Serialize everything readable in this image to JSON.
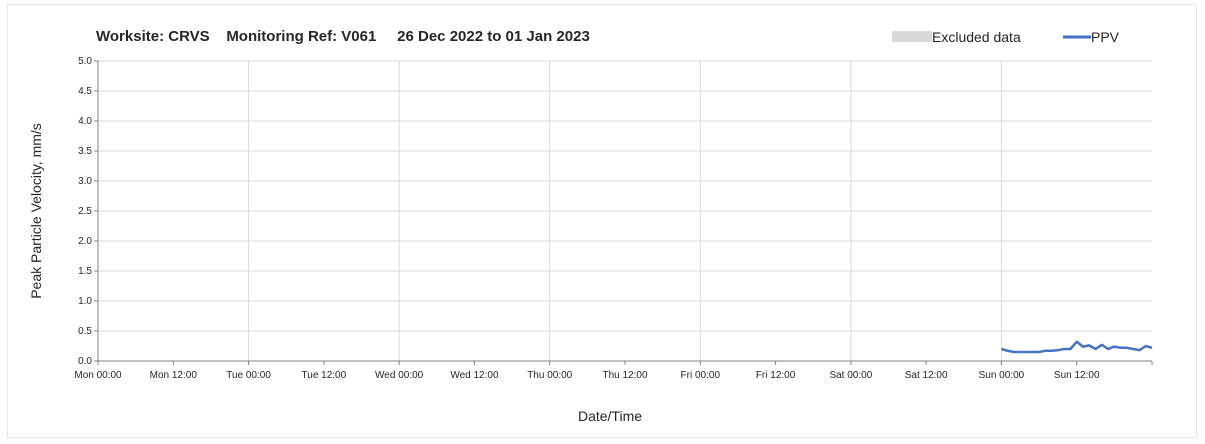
{
  "chart_data": {
    "type": "line",
    "title": "Worksite: CRVS    Monitoring Ref: V061     26 Dec 2022 to 01 Jan 2023",
    "xlabel": "Date/Time",
    "ylabel": "Peak Particle Velocity, mm/s",
    "xlim": [
      "2022-12-26 00:00",
      "2023-01-01 24:00"
    ],
    "ylim": [
      0,
      5
    ],
    "grid": true,
    "legend_position": "top-right",
    "x_ticks": [
      "Mon 00:00",
      "Mon 12:00",
      "Tue 00:00",
      "Tue 12:00",
      "Wed 00:00",
      "Wed 12:00",
      "Thu 00:00",
      "Thu 12:00",
      "Fri 00:00",
      "Fri 12:00",
      "Sat 00:00",
      "Sat 12:00",
      "Sun 00:00",
      "Sun 12:00"
    ],
    "y_ticks": [
      "0.0",
      "0.5",
      "1.0",
      "1.5",
      "2.0",
      "2.5",
      "3.0",
      "3.5",
      "4.0",
      "4.5",
      "5.0"
    ],
    "legend": [
      {
        "label": "Excluded data",
        "color": "#d9d9d9",
        "kind": "box"
      },
      {
        "label": "PPV",
        "color": "#4472c4",
        "kind": "line"
      }
    ],
    "series": [
      {
        "name": "PPV",
        "color": "#4472c4",
        "x": [
          "2023-01-01 00:00",
          "2023-01-01 01:00",
          "2023-01-01 02:00",
          "2023-01-01 03:00",
          "2023-01-01 04:00",
          "2023-01-01 05:00",
          "2023-01-01 06:00",
          "2023-01-01 07:00",
          "2023-01-01 08:00",
          "2023-01-01 09:00",
          "2023-01-01 10:00",
          "2023-01-01 11:00",
          "2023-01-01 12:00",
          "2023-01-01 13:00",
          "2023-01-01 14:00",
          "2023-01-01 15:00",
          "2023-01-01 16:00",
          "2023-01-01 17:00",
          "2023-01-01 18:00",
          "2023-01-01 19:00",
          "2023-01-01 20:00",
          "2023-01-01 21:00",
          "2023-01-01 22:00",
          "2023-01-01 23:00",
          "2023-01-01 24:00"
        ],
        "y": [
          0.2,
          0.17,
          0.15,
          0.15,
          0.15,
          0.15,
          0.15,
          0.17,
          0.17,
          0.18,
          0.2,
          0.2,
          0.32,
          0.24,
          0.26,
          0.2,
          0.27,
          0.2,
          0.24,
          0.22,
          0.22,
          0.2,
          0.18,
          0.25,
          0.22
        ]
      }
    ]
  }
}
